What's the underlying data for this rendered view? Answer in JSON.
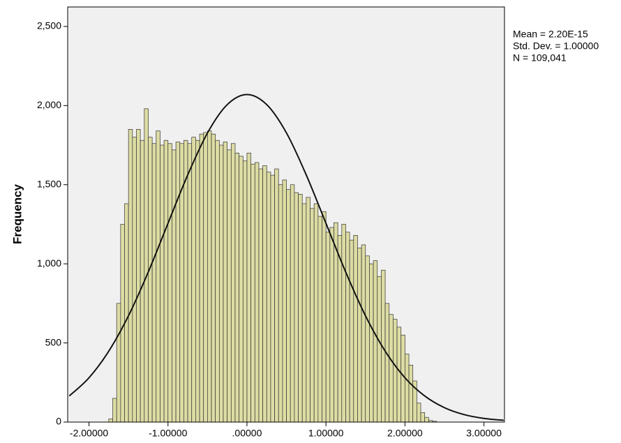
{
  "chart_data": {
    "type": "histogram",
    "ylabel": "Frequency",
    "annotations": [
      "Mean = 2.20E-15",
      "Std. Dev. = 1.00000",
      "N = 109,041"
    ],
    "bins": [
      -1.75,
      -1.7,
      -1.65,
      -1.6,
      -1.55,
      -1.5,
      -1.45,
      -1.4,
      -1.35,
      -1.3,
      -1.25,
      -1.2,
      -1.15,
      -1.1,
      -1.05,
      -1.0,
      -0.95,
      -0.9,
      -0.85,
      -0.8,
      -0.75,
      -0.7,
      -0.65,
      -0.6,
      -0.55,
      -0.5,
      -0.45,
      -0.4,
      -0.35,
      -0.3,
      -0.25,
      -0.2,
      -0.15,
      -0.1,
      -0.05,
      0.0,
      0.05,
      0.1,
      0.15,
      0.2,
      0.25,
      0.3,
      0.35,
      0.4,
      0.45,
      0.5,
      0.55,
      0.6,
      0.65,
      0.7,
      0.75,
      0.8,
      0.85,
      0.9,
      0.95,
      1.0,
      1.05,
      1.1,
      1.15,
      1.2,
      1.25,
      1.3,
      1.35,
      1.4,
      1.45,
      1.5,
      1.55,
      1.6,
      1.65,
      1.7,
      1.75,
      1.8,
      1.85,
      1.9,
      1.95,
      2.0,
      2.05,
      2.1,
      2.15,
      2.2,
      2.25,
      2.3,
      2.35,
      2.4
    ],
    "values": [
      20,
      150,
      750,
      1250,
      1380,
      1850,
      1800,
      1850,
      1780,
      1980,
      1800,
      1760,
      1840,
      1750,
      1780,
      1760,
      1720,
      1770,
      1760,
      1780,
      1760,
      1800,
      1780,
      1820,
      1830,
      1840,
      1820,
      1780,
      1750,
      1770,
      1720,
      1760,
      1700,
      1680,
      1650,
      1700,
      1630,
      1640,
      1600,
      1620,
      1580,
      1560,
      1600,
      1500,
      1530,
      1470,
      1500,
      1450,
      1440,
      1380,
      1420,
      1350,
      1380,
      1300,
      1330,
      1200,
      1230,
      1260,
      1180,
      1250,
      1200,
      1150,
      1180,
      1100,
      1120,
      1050,
      1000,
      1020,
      920,
      960,
      750,
      680,
      650,
      600,
      550,
      430,
      360,
      260,
      120,
      60,
      30,
      10,
      5
    ],
    "color": "#dcdca4",
    "curve": {
      "x": [
        -2.25,
        -2.0,
        -1.75,
        -1.5,
        -1.25,
        -1.0,
        -0.75,
        -0.5,
        -0.25,
        0,
        0.25,
        0.5,
        0.75,
        1.0,
        1.25,
        1.5,
        1.75,
        2.0,
        2.25,
        2.5,
        2.75,
        3.0,
        3.25
      ],
      "values": [
        165,
        280,
        448,
        672,
        948,
        1256,
        1562,
        1827,
        2006,
        2070,
        2006,
        1827,
        1562,
        1256,
        948,
        672,
        448,
        280,
        165,
        91,
        47,
        23,
        11
      ]
    },
    "xlim": [
      -2.27,
      3.26
    ],
    "xticks": [
      {
        "value": -2,
        "label": "-2.00000"
      },
      {
        "value": -1,
        "label": "-1.00000"
      },
      {
        "value": 0,
        "label": ".00000"
      },
      {
        "value": 1,
        "label": "1.00000"
      },
      {
        "value": 2,
        "label": "2.00000"
      },
      {
        "value": 3,
        "label": "3.00000"
      }
    ],
    "ylim": [
      0,
      2623
    ],
    "yticks": [
      0,
      500,
      {
        "value": 1000,
        "label": "1,000"
      },
      {
        "value": 1500,
        "label": "1,500"
      },
      {
        "value": 2000,
        "label": "2,000"
      },
      {
        "value": 2500,
        "label": "2,500"
      }
    ]
  }
}
